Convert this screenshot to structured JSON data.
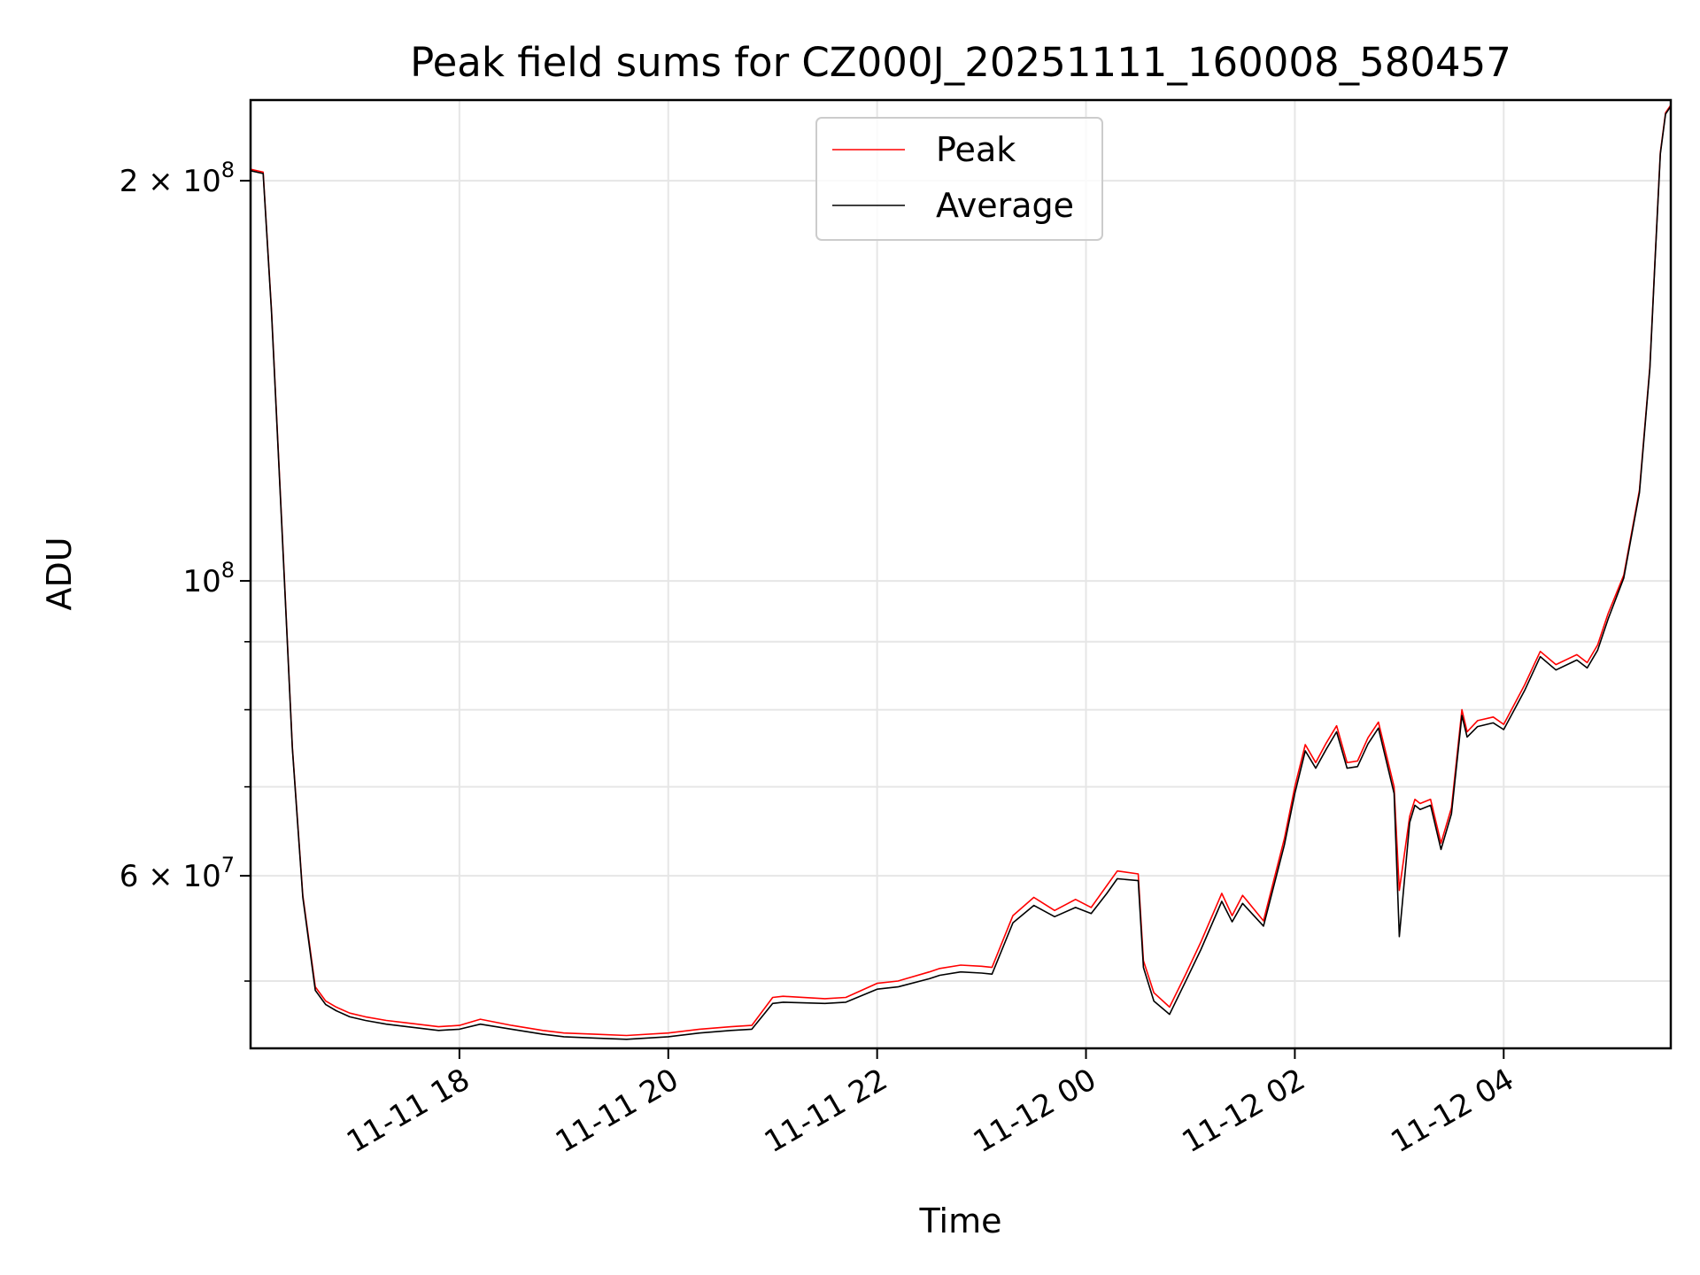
{
  "chart_data": {
    "type": "line",
    "title": "Peak field sums for CZ000J_20251111_160008_580457",
    "xlabel": "Time",
    "ylabel": "ADU",
    "yscale": "log",
    "ylim": [
      44500000,
      230000000
    ],
    "xlim_hours": [
      16.0,
      29.6
    ],
    "grid": true,
    "legend_position": "upper center",
    "x_ticks": [
      {
        "hour": 18,
        "label": "11-11 18"
      },
      {
        "hour": 20,
        "label": "11-11 20"
      },
      {
        "hour": 22,
        "label": "11-11 22"
      },
      {
        "hour": 24,
        "label": "11-12 00"
      },
      {
        "hour": 26,
        "label": "11-12 02"
      },
      {
        "hour": 28,
        "label": "11-12 04"
      }
    ],
    "y_ticks": [
      {
        "value": 200000000,
        "base": "2 × 10",
        "exp": "8"
      },
      {
        "value": 100000000,
        "base": "10",
        "exp": "8"
      },
      {
        "value": 60000000,
        "base": "6 × 10",
        "exp": "7"
      }
    ],
    "y_minor_ticks": [
      50000000,
      70000000,
      80000000,
      90000000
    ],
    "series": [
      {
        "name": "Peak",
        "color": "#ff0000",
        "x": [
          16.0,
          16.12,
          16.2,
          16.3,
          16.4,
          16.5,
          16.62,
          16.72,
          16.82,
          16.95,
          17.1,
          17.3,
          17.5,
          17.8,
          18.0,
          18.2,
          18.5,
          18.8,
          19.0,
          19.3,
          19.6,
          20.0,
          20.3,
          20.6,
          20.8,
          21.0,
          21.1,
          21.5,
          21.7,
          22.0,
          22.2,
          22.5,
          22.6,
          22.8,
          23.0,
          23.1,
          23.3,
          23.5,
          23.7,
          23.9,
          24.05,
          24.2,
          24.3,
          24.5,
          24.55,
          24.65,
          24.8,
          24.95,
          25.1,
          25.3,
          25.4,
          25.5,
          25.7,
          25.9,
          26.0,
          26.1,
          26.2,
          26.3,
          26.4,
          26.5,
          26.6,
          26.7,
          26.8,
          26.95,
          27.0,
          27.1,
          27.15,
          27.2,
          27.3,
          27.4,
          27.5,
          27.6,
          27.65,
          27.75,
          27.9,
          28.0,
          28.2,
          28.35,
          28.5,
          28.7,
          28.8,
          28.9,
          29.0,
          29.15,
          29.3,
          29.4,
          29.45,
          29.5,
          29.55,
          29.6
        ],
        "y": [
          204000000,
          203000000,
          160000000,
          110000000,
          75000000,
          58000000,
          49500000,
          48300000,
          47800000,
          47300000,
          47000000,
          46700000,
          46500000,
          46200000,
          46300000,
          46800000,
          46300000,
          45900000,
          45700000,
          45600000,
          45500000,
          45700000,
          46000000,
          46200000,
          46300000,
          48600000,
          48700000,
          48500000,
          48600000,
          49800000,
          50000000,
          50800000,
          51100000,
          51400000,
          51300000,
          51200000,
          56000000,
          57800000,
          56500000,
          57600000,
          56800000,
          59000000,
          60500000,
          60200000,
          51800000,
          49000000,
          47800000,
          50500000,
          53500000,
          58200000,
          56000000,
          58000000,
          55500000,
          64000000,
          70000000,
          75300000,
          73000000,
          75500000,
          77800000,
          73000000,
          73200000,
          76200000,
          78300000,
          70000000,
          58500000,
          66500000,
          68500000,
          68000000,
          68500000,
          63500000,
          67500000,
          80000000,
          77000000,
          78500000,
          79000000,
          78000000,
          83500000,
          88500000,
          86500000,
          88000000,
          86800000,
          89500000,
          94500000,
          101000000,
          117000000,
          145000000,
          175000000,
          210000000,
          225000000,
          228000000
        ]
      },
      {
        "name": "Average",
        "color": "#000000",
        "x": [
          16.0,
          16.12,
          16.2,
          16.3,
          16.4,
          16.5,
          16.62,
          16.72,
          16.82,
          16.95,
          17.1,
          17.3,
          17.5,
          17.8,
          18.0,
          18.2,
          18.5,
          18.8,
          19.0,
          19.3,
          19.6,
          20.0,
          20.3,
          20.6,
          20.8,
          21.0,
          21.1,
          21.5,
          21.7,
          22.0,
          22.2,
          22.5,
          22.6,
          22.8,
          23.0,
          23.1,
          23.3,
          23.5,
          23.7,
          23.9,
          24.05,
          24.2,
          24.3,
          24.5,
          24.55,
          24.65,
          24.8,
          24.95,
          25.1,
          25.3,
          25.4,
          25.5,
          25.7,
          25.9,
          26.0,
          26.1,
          26.2,
          26.3,
          26.4,
          26.5,
          26.6,
          26.7,
          26.8,
          26.95,
          27.0,
          27.1,
          27.15,
          27.2,
          27.3,
          27.4,
          27.5,
          27.6,
          27.65,
          27.75,
          27.9,
          28.0,
          28.2,
          28.35,
          28.5,
          28.7,
          28.8,
          28.9,
          29.0,
          29.15,
          29.3,
          29.4,
          29.45,
          29.5,
          29.55,
          29.6
        ],
        "y": [
          203500000,
          202500000,
          159500000,
          109500000,
          74800000,
          57800000,
          49200000,
          48000000,
          47500000,
          47000000,
          46700000,
          46400000,
          46200000,
          45900000,
          46000000,
          46400000,
          46000000,
          45600000,
          45400000,
          45300000,
          45200000,
          45400000,
          45700000,
          45900000,
          46000000,
          48100000,
          48200000,
          48100000,
          48200000,
          49300000,
          49500000,
          50200000,
          50500000,
          50800000,
          50700000,
          50600000,
          55300000,
          57000000,
          55900000,
          56800000,
          56200000,
          58200000,
          59700000,
          59500000,
          51200000,
          48300000,
          47200000,
          49900000,
          52800000,
          57400000,
          55400000,
          57200000,
          55000000,
          63300000,
          69200000,
          74500000,
          72300000,
          74700000,
          77000000,
          72300000,
          72500000,
          75400000,
          77500000,
          69200000,
          54000000,
          65800000,
          67800000,
          67300000,
          67800000,
          62800000,
          66800000,
          79200000,
          76300000,
          77700000,
          78200000,
          77300000,
          82700000,
          87700000,
          85700000,
          87200000,
          86000000,
          88700000,
          93600000,
          100500000,
          116500000,
          144500000,
          174500000,
          209500000,
          224500000,
          227500000
        ]
      }
    ]
  }
}
